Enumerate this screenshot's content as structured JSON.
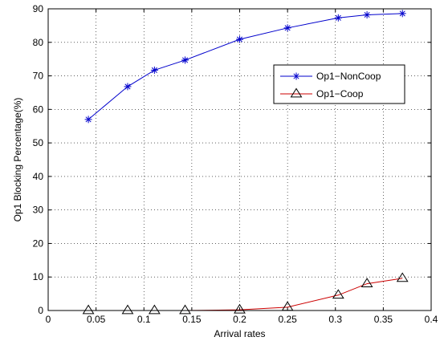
{
  "chart_data": {
    "type": "line",
    "title": "",
    "xlabel": "Arrival rates",
    "ylabel": "Op1 Blocking Percentage(%)",
    "xlim": [
      0,
      0.4
    ],
    "ylim": [
      0,
      90
    ],
    "grid": true,
    "legend_position": "top-right",
    "x_ticks": [
      0,
      0.05,
      0.1,
      0.15,
      0.2,
      0.25,
      0.3,
      0.35,
      0.4
    ],
    "x_tick_labels": [
      "0",
      "0.05",
      "0.1",
      "0.15",
      "0.2",
      "0.25",
      "0.3",
      "0.35",
      "0.4"
    ],
    "y_ticks": [
      0,
      10,
      20,
      30,
      40,
      50,
      60,
      70,
      80,
      90
    ],
    "y_tick_labels": [
      "0",
      "10",
      "20",
      "30",
      "40",
      "50",
      "60",
      "70",
      "80",
      "90"
    ],
    "series": [
      {
        "name": "Op1−NonCoop",
        "color": "#0000cc",
        "marker": "asterisk",
        "x": [
          0.042,
          0.083,
          0.111,
          0.143,
          0.2,
          0.25,
          0.303,
          0.333,
          0.37
        ],
        "y": [
          57.0,
          66.8,
          71.7,
          74.7,
          80.9,
          84.3,
          87.3,
          88.2,
          88.6
        ]
      },
      {
        "name": "Op1−Coop",
        "color": "#cc0000",
        "marker": "triangle",
        "x": [
          0.042,
          0.083,
          0.111,
          0.143,
          0.2,
          0.25,
          0.303,
          0.333,
          0.37
        ],
        "y": [
          0.0,
          0.0,
          0.0,
          0.0,
          0.2,
          1.0,
          4.6,
          8.0,
          9.6
        ]
      }
    ]
  }
}
